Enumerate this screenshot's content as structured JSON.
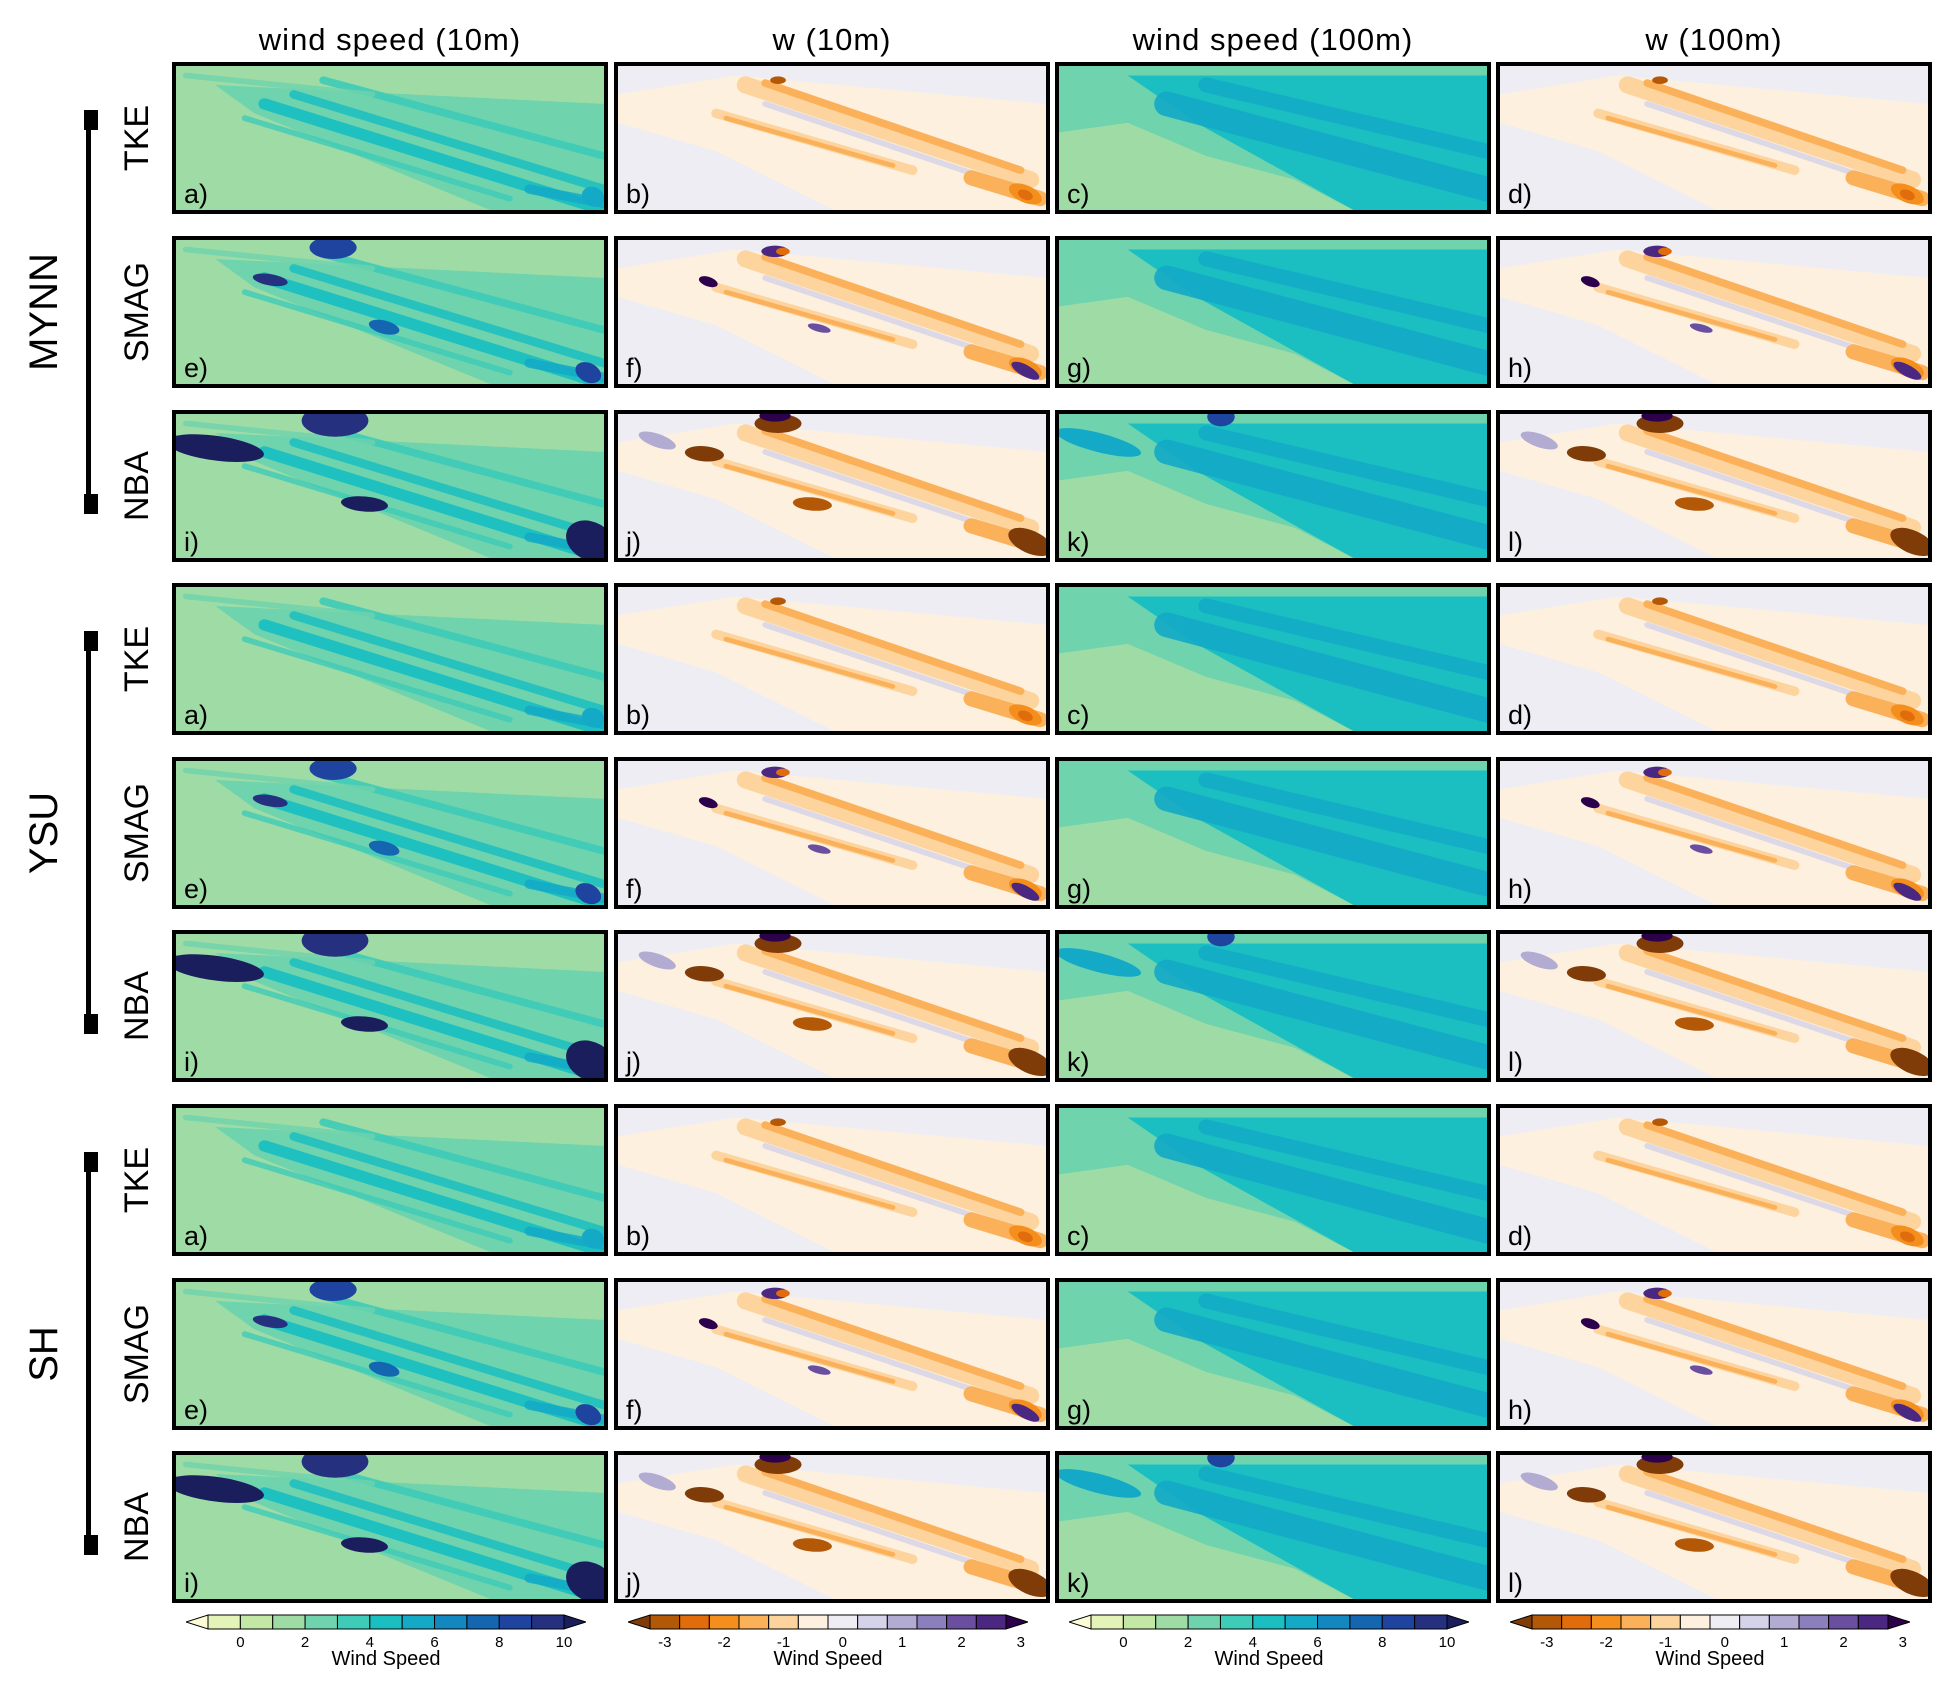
{
  "column_titles": [
    "wind speed (10m)",
    "w (10m)",
    "wind speed (100m)",
    "w (100m)"
  ],
  "groups": [
    {
      "name": "MYNN",
      "rows": [
        "TKE",
        "SMAG",
        "NBA"
      ]
    },
    {
      "name": "YSU",
      "rows": [
        "TKE",
        "SMAG",
        "NBA"
      ]
    },
    {
      "name": "SH",
      "rows": [
        "TKE",
        "SMAG",
        "NBA"
      ]
    }
  ],
  "panel_letters": [
    [
      "a)",
      "b)",
      "c)",
      "d)"
    ],
    [
      "e)",
      "f)",
      "g)",
      "h)"
    ],
    [
      "i)",
      "j)",
      "k)",
      "l)"
    ]
  ],
  "colorbars": [
    {
      "title": "Wind Speed",
      "type": "speed",
      "ticks": [
        "0",
        "2",
        "4",
        "6",
        "8",
        "10"
      ],
      "colors": [
        "#fbfcd6",
        "#e4f3b8",
        "#c3e8a6",
        "#9fdca5",
        "#6fd3ad",
        "#3ecbb8",
        "#1bbfc2",
        "#13a9c7",
        "#1287c0",
        "#1566b1",
        "#1f44a0",
        "#25307e",
        "#1a1e5c"
      ]
    },
    {
      "title": "Wind Speed",
      "type": "w",
      "ticks": [
        "-3",
        "-2",
        "-1",
        "0",
        "1",
        "2",
        "3"
      ],
      "colors": [
        "#7f3b08",
        "#b35806",
        "#e06c0c",
        "#f48e1d",
        "#fbb05a",
        "#fdd49e",
        "#fdf0de",
        "#eeedf4",
        "#d5d3e9",
        "#b2abd2",
        "#8c7fbd",
        "#6a4fa0",
        "#4a2780",
        "#2d004b"
      ]
    },
    {
      "title": "Wind Speed",
      "type": "speed",
      "ticks": [
        "0",
        "2",
        "4",
        "6",
        "8",
        "10"
      ],
      "colors": [
        "#fbfcd6",
        "#e4f3b8",
        "#c3e8a6",
        "#9fdca5",
        "#6fd3ad",
        "#3ecbb8",
        "#1bbfc2",
        "#13a9c7",
        "#1287c0",
        "#1566b1",
        "#1f44a0",
        "#25307e",
        "#1a1e5c"
      ]
    },
    {
      "title": "Wind Speed",
      "type": "w",
      "ticks": [
        "-3",
        "-2",
        "-1",
        "0",
        "1",
        "2",
        "3"
      ],
      "colors": [
        "#7f3b08",
        "#b35806",
        "#e06c0c",
        "#f48e1d",
        "#fbb05a",
        "#fdd49e",
        "#fdf0de",
        "#eeedf4",
        "#d5d3e9",
        "#b2abd2",
        "#8c7fbd",
        "#6a4fa0",
        "#4a2780",
        "#2d004b"
      ]
    }
  ],
  "chart_data": {
    "type": "heatmap",
    "columns": [
      "wind speed (10m)",
      "w (10m)",
      "wind speed (100m)",
      "w (100m)"
    ],
    "groups": [
      "MYNN",
      "YSU",
      "SH"
    ],
    "rows": [
      "TKE",
      "SMAG",
      "NBA"
    ],
    "wind_speed_range": [
      0,
      10
    ],
    "w_range": [
      -3,
      3
    ],
    "colorbar_label": "Wind Speed"
  }
}
